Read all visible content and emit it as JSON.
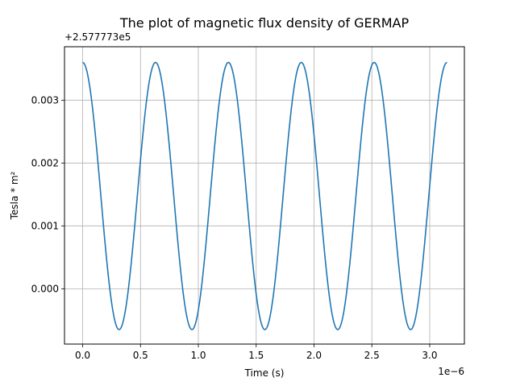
{
  "chart_data": {
    "type": "line",
    "title": "The plot of magnetic flux density of GERMAP",
    "xlabel": "Time (s)",
    "ylabel": "Tesla * m²",
    "x_offset_text": "1e−6",
    "y_offset_text": "+2.577773e5",
    "x_ticks": [
      0.0,
      0.5,
      1.0,
      1.5,
      2.0,
      2.5,
      3.0
    ],
    "x_tick_labels": [
      "0.0",
      "0.5",
      "1.0",
      "1.5",
      "2.0",
      "2.5",
      "3.0"
    ],
    "y_ticks": [
      0.0,
      0.001,
      0.002,
      0.003
    ],
    "y_tick_labels": [
      "0.000",
      "0.001",
      "0.002",
      "0.003"
    ],
    "xlim": [
      -0.157,
      3.3
    ],
    "ylim": [
      -0.00088,
      0.00385
    ],
    "grid": true,
    "color": "#1f77b4",
    "series": [
      {
        "x_range": [
          0.0,
          3.15
        ],
        "y_max": 0.0036,
        "y_min": -0.00065,
        "period": 0.63,
        "points": [
          [
            0.0,
            0.0036
          ],
          [
            0.315,
            -0.00065
          ],
          [
            0.63,
            0.0036
          ],
          [
            0.945,
            -0.00065
          ],
          [
            1.26,
            0.0036
          ],
          [
            1.575,
            -0.00065
          ],
          [
            1.89,
            0.0036
          ],
          [
            2.205,
            -0.00065
          ],
          [
            2.52,
            0.0036
          ],
          [
            2.835,
            -0.00065
          ],
          [
            3.15,
            0.0036
          ]
        ]
      }
    ]
  }
}
